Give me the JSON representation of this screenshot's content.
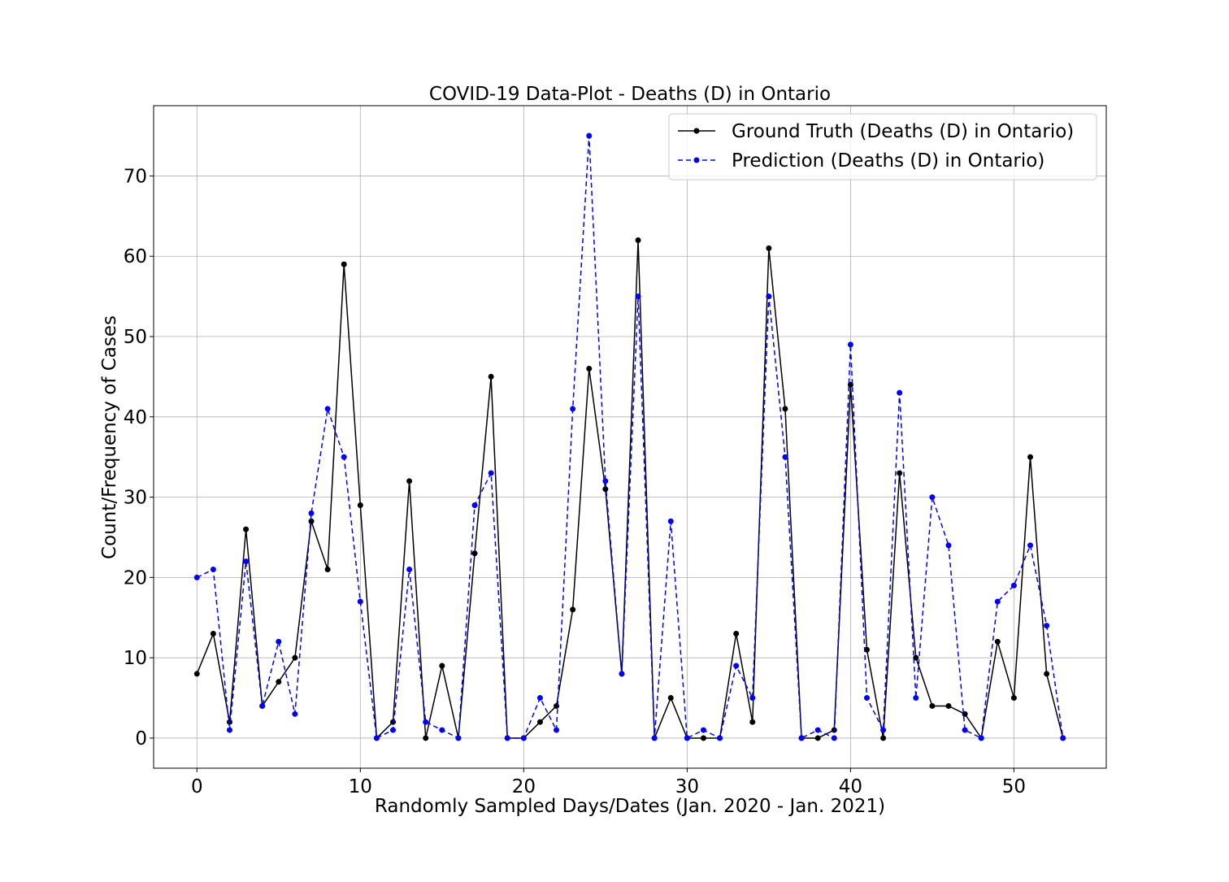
{
  "chart_data": {
    "type": "line",
    "title": "COVID-19 Data-Plot - Deaths (D) in Ontario",
    "xlabel": "Randomly Sampled Days/Dates (Jan. 2020 - Jan. 2021)",
    "ylabel": "Count/Frequency of Cases",
    "xlim": [
      -2.65,
      55.65
    ],
    "ylim": [
      -3.75,
      78.75
    ],
    "xticks": [
      0,
      10,
      20,
      30,
      40,
      50
    ],
    "yticks": [
      0,
      10,
      20,
      30,
      40,
      50,
      60,
      70
    ],
    "grid": true,
    "legend_position": "upper right",
    "x": [
      0,
      1,
      2,
      3,
      4,
      5,
      6,
      7,
      8,
      9,
      10,
      11,
      12,
      13,
      14,
      15,
      16,
      17,
      18,
      19,
      20,
      21,
      22,
      23,
      24,
      25,
      26,
      27,
      28,
      29,
      30,
      31,
      32,
      33,
      34,
      35,
      36,
      37,
      38,
      39,
      40,
      41,
      42,
      43,
      44,
      45,
      46,
      47,
      48,
      49,
      50,
      51,
      52,
      53
    ],
    "series": [
      {
        "name": "Ground Truth (Deaths (D) in Ontario)",
        "color": "#000000",
        "line_style": "solid",
        "marker": "circle",
        "values": [
          8,
          13,
          2,
          26,
          4,
          7,
          10,
          27,
          21,
          59,
          29,
          0,
          2,
          32,
          0,
          9,
          0,
          23,
          45,
          0,
          0,
          2,
          4,
          16,
          46,
          31,
          8,
          62,
          0,
          5,
          0,
          0,
          0,
          13,
          2,
          61,
          41,
          0,
          0,
          1,
          44,
          11,
          0,
          33,
          10,
          4,
          4,
          3,
          0,
          12,
          5,
          35,
          8,
          0
        ]
      },
      {
        "name": "Prediction (Deaths (D) in Ontario)",
        "color": "#0000ff",
        "line_style": "dashed",
        "marker": "circle",
        "values": [
          20,
          21,
          1,
          22,
          4,
          12,
          3,
          28,
          41,
          35,
          17,
          0,
          1,
          21,
          2,
          1,
          0,
          29,
          33,
          0,
          0,
          5,
          1,
          41,
          75,
          32,
          8,
          55,
          0,
          27,
          0,
          1,
          0,
          9,
          5,
          55,
          35,
          0,
          1,
          0,
          49,
          5,
          1,
          43,
          5,
          30,
          24,
          1,
          0,
          17,
          19,
          24,
          14,
          0
        ]
      }
    ]
  }
}
